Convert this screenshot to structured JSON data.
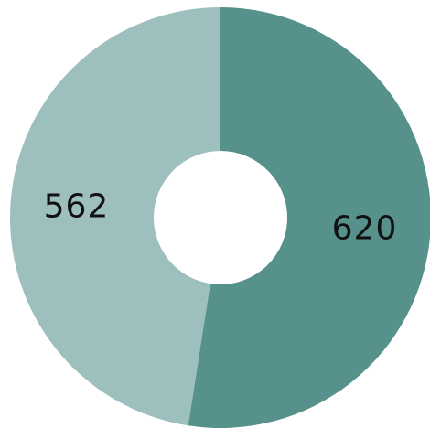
{
  "chart_data": {
    "type": "pie",
    "variant": "donut",
    "categories": [
      "",
      ""
    ],
    "values": [
      620,
      562
    ],
    "data_labels": [
      "620",
      "562"
    ],
    "colors": [
      "#57918b",
      "#9dbfbd"
    ],
    "start": "top, clockwise",
    "legend": "none",
    "title": ""
  }
}
